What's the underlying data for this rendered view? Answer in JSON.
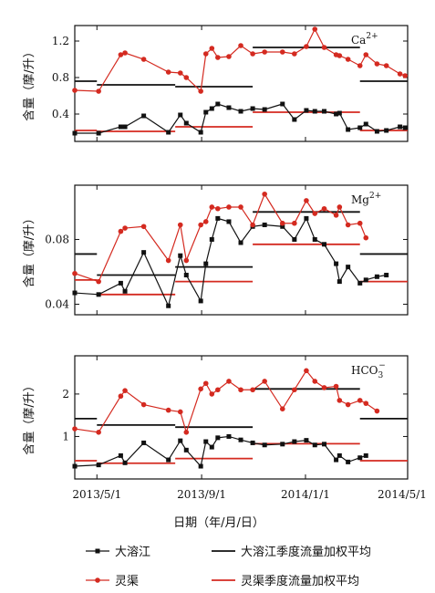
{
  "chart_data": {
    "type": "line",
    "xlabel": "日期（年/月/日）",
    "xticks": [
      "2013/5/1",
      "2013/9/1",
      "2014/1/1",
      "2014/5/1"
    ],
    "legend": {
      "placement": "bottom",
      "entries": [
        {
          "key": "djj",
          "label": "大溶江"
        },
        {
          "key": "djj_avg",
          "label": "大溶江季度流量加权平均"
        },
        {
          "key": "lq",
          "label": "灵渠"
        },
        {
          "key": "lq_avg",
          "label": "灵渠季度流量加权平均"
        }
      ]
    },
    "colors": {
      "djj": "#111111",
      "lq": "#d42a20"
    },
    "x": [
      "2013-04-05",
      "2013-05-03",
      "2013-05-29",
      "2013-06-03",
      "2013-06-25",
      "2013-07-24",
      "2013-08-07",
      "2013-08-14",
      "2013-08-31",
      "2013-09-06",
      "2013-09-13",
      "2013-09-20",
      "2013-10-03",
      "2013-10-17",
      "2013-10-31",
      "2013-11-14",
      "2013-12-05",
      "2013-12-19",
      "2014-01-02",
      "2014-01-12",
      "2014-01-23",
      "2014-02-06",
      "2014-02-10",
      "2014-02-20",
      "2014-03-06",
      "2014-03-13",
      "2014-03-26",
      "2014-04-06",
      "2014-04-22",
      "2014-04-28",
      "2014-05-01"
    ],
    "panels": [
      {
        "ion": "Ca",
        "ion_sup": "2+",
        "ylabel": "含量（摩/升）",
        "ylim": [
          0.1,
          1.37
        ],
        "yticks": [
          0.4,
          0.8,
          1.2
        ],
        "ytick_labels": [
          "0.4",
          "0.8",
          "1.2"
        ],
        "series": [
          {
            "key": "djj",
            "values": [
              0.19,
              0.19,
              0.26,
              0.26,
              0.38,
              0.2,
              0.39,
              0.3,
              0.2,
              0.42,
              0.46,
              0.51,
              0.47,
              0.43,
              0.46,
              0.45,
              0.51,
              0.34,
              0.44,
              0.43,
              0.43,
              0.4,
              0.41,
              0.23,
              0.25,
              0.29,
              0.21,
              0.22,
              0.26,
              0.25,
              null
            ]
          },
          {
            "key": "lq",
            "values": [
              0.66,
              0.65,
              1.05,
              1.07,
              1.0,
              0.86,
              0.85,
              0.8,
              0.65,
              1.06,
              1.12,
              1.02,
              1.03,
              1.15,
              1.06,
              1.08,
              1.08,
              1.06,
              1.14,
              1.33,
              1.13,
              1.05,
              1.04,
              1.0,
              0.93,
              1.05,
              0.95,
              0.93,
              0.84,
              0.82,
              null
            ]
          }
        ],
        "seasonal": [
          {
            "key": "djj_avg",
            "segments": [
              {
                "from": "2013-04-05",
                "to": "2013-05-01",
                "value": 0.76
              },
              {
                "from": "2013-05-01",
                "to": "2013-08-01",
                "value": 0.72
              },
              {
                "from": "2013-08-01",
                "to": "2013-10-31",
                "value": 0.7
              },
              {
                "from": "2013-10-31",
                "to": "2014-03-06",
                "value": 1.13
              },
              {
                "from": "2014-03-06",
                "to": "2014-05-01",
                "value": 0.76
              }
            ]
          },
          {
            "key": "lq_avg",
            "segments": [
              {
                "from": "2013-04-05",
                "to": "2013-05-01",
                "value": 0.22
              },
              {
                "from": "2013-05-01",
                "to": "2013-08-01",
                "value": 0.21
              },
              {
                "from": "2013-08-01",
                "to": "2013-10-31",
                "value": 0.26
              },
              {
                "from": "2013-10-31",
                "to": "2014-03-06",
                "value": 0.42
              },
              {
                "from": "2014-03-06",
                "to": "2014-05-01",
                "value": 0.22
              }
            ]
          }
        ]
      },
      {
        "ion": "Mg",
        "ion_sup": "2+",
        "ylabel": "含量（摩/升）",
        "ylim": [
          0.0335,
          0.1135
        ],
        "yticks": [
          0.04,
          0.08
        ],
        "ytick_labels": [
          "0.04",
          "0.08"
        ],
        "series": [
          {
            "key": "djj",
            "values": [
              0.047,
              0.046,
              0.053,
              0.048,
              0.072,
              0.039,
              0.07,
              0.058,
              0.042,
              0.065,
              0.08,
              0.093,
              0.091,
              0.078,
              0.088,
              0.089,
              0.088,
              0.08,
              0.093,
              0.08,
              0.077,
              0.065,
              0.054,
              0.063,
              0.053,
              0.055,
              0.057,
              0.058,
              null,
              null,
              null
            ]
          },
          {
            "key": "lq",
            "values": [
              0.059,
              0.054,
              0.085,
              0.087,
              0.088,
              0.067,
              0.089,
              0.067,
              0.089,
              0.091,
              0.1,
              0.099,
              0.1,
              0.1,
              0.089,
              0.108,
              0.09,
              0.09,
              0.104,
              0.096,
              0.099,
              0.095,
              0.1,
              0.089,
              0.09,
              0.081,
              null,
              null,
              null,
              null,
              null
            ]
          }
        ],
        "seasonal": [
          {
            "key": "djj_avg",
            "segments": [
              {
                "from": "2013-04-05",
                "to": "2013-05-01",
                "value": 0.071
              },
              {
                "from": "2013-05-01",
                "to": "2013-08-01",
                "value": 0.058
              },
              {
                "from": "2013-08-01",
                "to": "2013-10-31",
                "value": 0.063
              },
              {
                "from": "2013-10-31",
                "to": "2014-03-06",
                "value": 0.097
              },
              {
                "from": "2014-03-06",
                "to": "2014-05-01",
                "value": 0.071
              }
            ]
          },
          {
            "key": "lq_avg",
            "segments": [
              {
                "from": "2013-04-05",
                "to": "2013-05-01",
                "value": 0.055
              },
              {
                "from": "2013-05-01",
                "to": "2013-08-01",
                "value": 0.046
              },
              {
                "from": "2013-08-01",
                "to": "2013-10-31",
                "value": 0.054
              },
              {
                "from": "2013-10-31",
                "to": "2014-03-06",
                "value": 0.077
              },
              {
                "from": "2014-03-06",
                "to": "2014-05-01",
                "value": 0.054
              }
            ]
          }
        ]
      },
      {
        "ion": "HCO",
        "ion_sub": "3",
        "ion_sup": "−",
        "ylabel": "含量（摩/升）",
        "ylim": [
          0,
          2.9
        ],
        "yticks": [
          1,
          2
        ],
        "ytick_labels": [
          "1",
          "2"
        ],
        "series": [
          {
            "key": "djj",
            "values": [
              0.3,
              0.33,
              0.55,
              0.38,
              0.85,
              0.45,
              0.9,
              0.68,
              0.3,
              0.88,
              0.75,
              0.97,
              1.0,
              0.92,
              0.85,
              0.8,
              0.82,
              0.88,
              0.91,
              0.8,
              0.82,
              0.45,
              0.55,
              0.4,
              0.5,
              0.55,
              null,
              null,
              null,
              null,
              null
            ]
          },
          {
            "key": "lq",
            "values": [
              1.18,
              1.1,
              1.95,
              2.08,
              1.75,
              1.62,
              1.58,
              1.1,
              2.12,
              2.25,
              2.0,
              2.1,
              2.3,
              2.1,
              2.1,
              2.3,
              1.65,
              2.1,
              2.55,
              2.3,
              2.15,
              2.18,
              1.85,
              1.75,
              1.85,
              1.78,
              1.6,
              null,
              null,
              null,
              null
            ]
          }
        ],
        "seasonal": [
          {
            "key": "djj_avg",
            "segments": [
              {
                "from": "2013-04-05",
                "to": "2013-05-01",
                "value": 1.42
              },
              {
                "from": "2013-05-01",
                "to": "2013-08-01",
                "value": 1.27
              },
              {
                "from": "2013-08-01",
                "to": "2013-10-31",
                "value": 1.22
              },
              {
                "from": "2013-10-31",
                "to": "2014-03-06",
                "value": 2.12
              },
              {
                "from": "2014-03-06",
                "to": "2014-05-01",
                "value": 1.42
              }
            ]
          },
          {
            "key": "lq_avg",
            "segments": [
              {
                "from": "2013-04-05",
                "to": "2013-05-01",
                "value": 0.43
              },
              {
                "from": "2013-05-01",
                "to": "2013-08-01",
                "value": 0.37
              },
              {
                "from": "2013-08-01",
                "to": "2013-10-31",
                "value": 0.48
              },
              {
                "from": "2013-10-31",
                "to": "2014-03-06",
                "value": 0.83
              },
              {
                "from": "2014-03-06",
                "to": "2014-05-01",
                "value": 0.43
              }
            ]
          }
        ]
      }
    ]
  }
}
